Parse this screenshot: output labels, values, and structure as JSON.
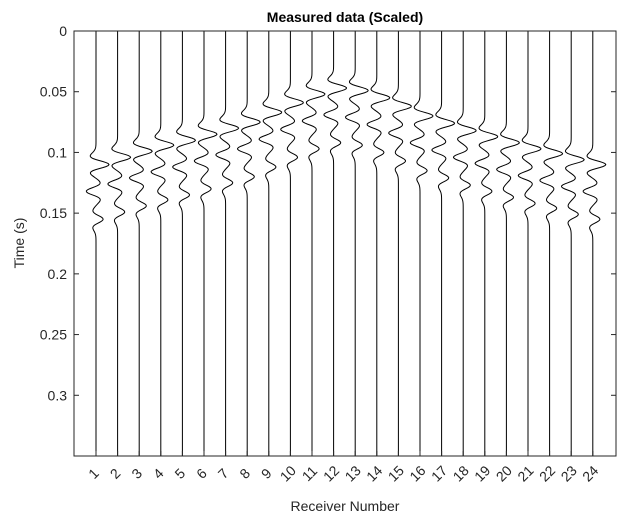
{
  "chart_data": {
    "type": "line",
    "title": "Measured data (Scaled)",
    "xlabel": "Receiver Number",
    "ylabel": "Time (s)",
    "x_ticks": [
      "1",
      "2",
      "3",
      "4",
      "5",
      "6",
      "7",
      "8",
      "9",
      "10",
      "11",
      "12",
      "13",
      "14",
      "15",
      "16",
      "17",
      "18",
      "19",
      "20",
      "21",
      "22",
      "23",
      "24"
    ],
    "y_ticks": [
      "0",
      "0.05",
      "0.1",
      "0.15",
      "0.2",
      "0.25",
      "0.3"
    ],
    "y_tick_values": [
      0,
      0.05,
      0.1,
      0.15,
      0.2,
      0.25,
      0.3
    ],
    "ylim": [
      0,
      0.35
    ],
    "y_reversed": true,
    "grid": false,
    "legend": "none",
    "line_color": "#000000",
    "series": [
      {
        "receiver": 1,
        "arrival_s": 0.11,
        "amplitude": 1.0
      },
      {
        "receiver": 2,
        "arrival_s": 0.104,
        "amplitude": 1.0
      },
      {
        "receiver": 3,
        "arrival_s": 0.099,
        "amplitude": 1.0
      },
      {
        "receiver": 4,
        "arrival_s": 0.094,
        "amplitude": 1.0
      },
      {
        "receiver": 5,
        "arrival_s": 0.09,
        "amplitude": 1.0
      },
      {
        "receiver": 6,
        "arrival_s": 0.085,
        "amplitude": 1.0
      },
      {
        "receiver": 7,
        "arrival_s": 0.08,
        "amplitude": 1.0
      },
      {
        "receiver": 8,
        "arrival_s": 0.075,
        "amplitude": 1.0
      },
      {
        "receiver": 9,
        "arrival_s": 0.067,
        "amplitude": 1.0
      },
      {
        "receiver": 10,
        "arrival_s": 0.059,
        "amplitude": 1.0
      },
      {
        "receiver": 11,
        "arrival_s": 0.052,
        "amplitude": 1.0
      },
      {
        "receiver": 12,
        "arrival_s": 0.047,
        "amplitude": 1.0
      },
      {
        "receiver": 13,
        "arrival_s": 0.049,
        "amplitude": 1.0
      },
      {
        "receiver": 14,
        "arrival_s": 0.055,
        "amplitude": 1.0
      },
      {
        "receiver": 15,
        "arrival_s": 0.062,
        "amplitude": 1.0
      },
      {
        "receiver": 16,
        "arrival_s": 0.07,
        "amplitude": 1.0
      },
      {
        "receiver": 17,
        "arrival_s": 0.076,
        "amplitude": 1.0
      },
      {
        "receiver": 18,
        "arrival_s": 0.082,
        "amplitude": 1.0
      },
      {
        "receiver": 19,
        "arrival_s": 0.087,
        "amplitude": 1.0
      },
      {
        "receiver": 20,
        "arrival_s": 0.092,
        "amplitude": 1.0
      },
      {
        "receiver": 21,
        "arrival_s": 0.097,
        "amplitude": 1.0
      },
      {
        "receiver": 22,
        "arrival_s": 0.101,
        "amplitude": 1.0
      },
      {
        "receiver": 23,
        "arrival_s": 0.106,
        "amplitude": 1.0
      },
      {
        "receiver": 24,
        "arrival_s": 0.11,
        "amplitude": 1.0
      }
    ]
  }
}
